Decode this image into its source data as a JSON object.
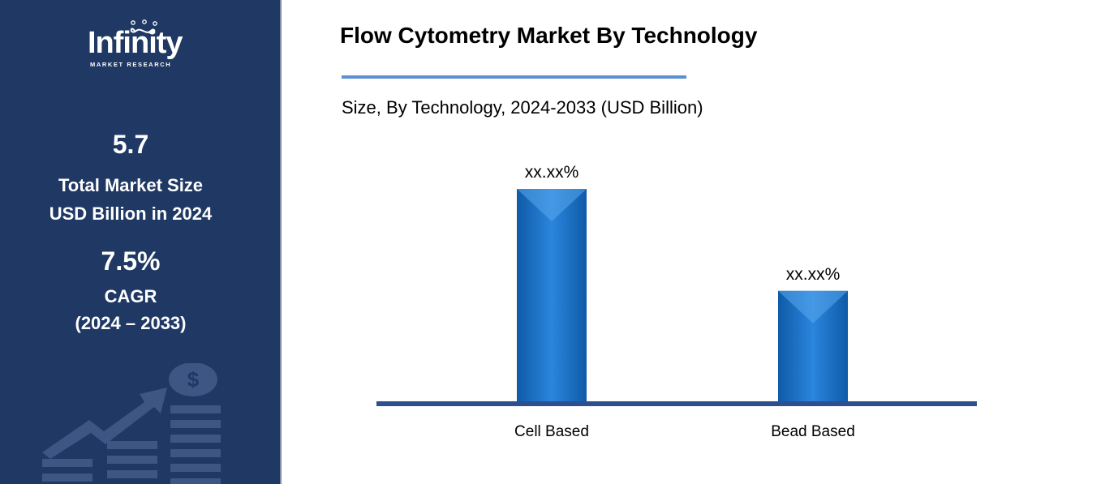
{
  "brand": {
    "name": "Infinity",
    "tagline": "MARKET RESEARCH"
  },
  "sidebar": {
    "market_size_value": "5.7",
    "market_size_label_line1": "Total Market Size",
    "market_size_label_line2": "USD Billion in 2024",
    "cagr_value": "7.5%",
    "cagr_label": "CAGR",
    "cagr_period": "(2024 – 2033)",
    "decor_icon": "dollar-growth-icon"
  },
  "colors": {
    "sidebar_bg": "#1f3864",
    "bar": "#1a6fc4",
    "baseline": "#2e4f8f",
    "title_rule": "#5b8fd1"
  },
  "chart_data": {
    "type": "bar",
    "title": "Flow Cytometry Market By Technology",
    "subtitle": "Size, By Technology, 2024-2033 (USD Billion)",
    "categories": [
      "Cell Based",
      "Bead Based"
    ],
    "values": [
      100,
      52
    ],
    "data_labels": [
      "xx.xx%",
      "xx.xx%"
    ],
    "xlabel": "",
    "ylabel": "",
    "grid": false,
    "legend": "none"
  }
}
